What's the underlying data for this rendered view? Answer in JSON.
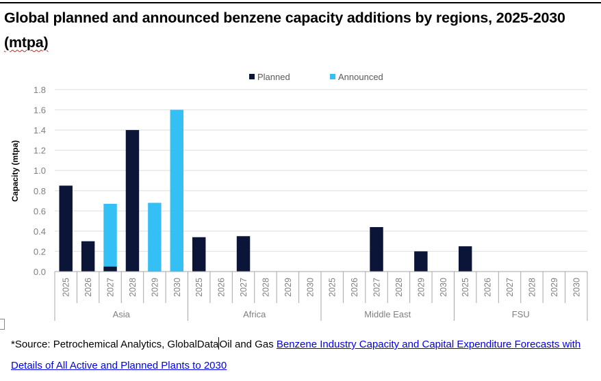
{
  "title": {
    "main": "Global planned and announced benzene capacity additions by regions, 2025-2030",
    "unit": "(mtpa)"
  },
  "colors": {
    "planned": "#0b1538",
    "announced": "#35c0f5",
    "grid": "#e3e3e3",
    "axis": "#a6a6a6"
  },
  "chart_data": {
    "type": "bar",
    "stacked": true,
    "title": "Global planned and announced benzene capacity additions by regions, 2025-2030 (mtpa)",
    "xlabel": "",
    "ylabel": "Capacity (mtpa)",
    "ylim": [
      0,
      1.8
    ],
    "yticks": [
      "0.0",
      "0.2",
      "0.4",
      "0.6",
      "0.8",
      "1.0",
      "1.2",
      "1.4",
      "1.6",
      "1.8"
    ],
    "grid": true,
    "legend_position": "top-center",
    "groups": [
      {
        "name": "Asia",
        "categories": [
          "2025",
          "2026",
          "2027",
          "2028",
          "2029",
          "2030"
        ]
      },
      {
        "name": "Africa",
        "categories": [
          "2025",
          "2026",
          "2027",
          "2028",
          "2029",
          "2030"
        ]
      },
      {
        "name": "Middle East",
        "categories": [
          "2025",
          "2026",
          "2027",
          "2028",
          "2029",
          "2030"
        ]
      },
      {
        "name": "FSU",
        "categories": [
          "2025",
          "2026",
          "2027",
          "2028",
          "2029",
          "2030"
        ]
      }
    ],
    "series": [
      {
        "name": "Planned",
        "values": [
          0.85,
          0.3,
          0.05,
          1.4,
          0,
          0,
          0.34,
          0,
          0.35,
          0,
          0,
          0,
          0,
          0,
          0.44,
          0,
          0.2,
          0,
          0.25,
          0,
          0,
          0,
          0,
          0
        ]
      },
      {
        "name": "Announced",
        "values": [
          0,
          0,
          0.62,
          0,
          0.68,
          1.6,
          0,
          0,
          0,
          0,
          0,
          0,
          0,
          0,
          0,
          0,
          0,
          0,
          0,
          0,
          0,
          0,
          0,
          0
        ]
      }
    ]
  },
  "source": {
    "prefix": "*Source: Petrochemical Analytics, GlobalData",
    "middle": "Oil and Gas ",
    "link_text": "Benzene Industry Capacity and Capital Expenditure Forecasts with Details of All Active and Planned Plants to 2030"
  }
}
